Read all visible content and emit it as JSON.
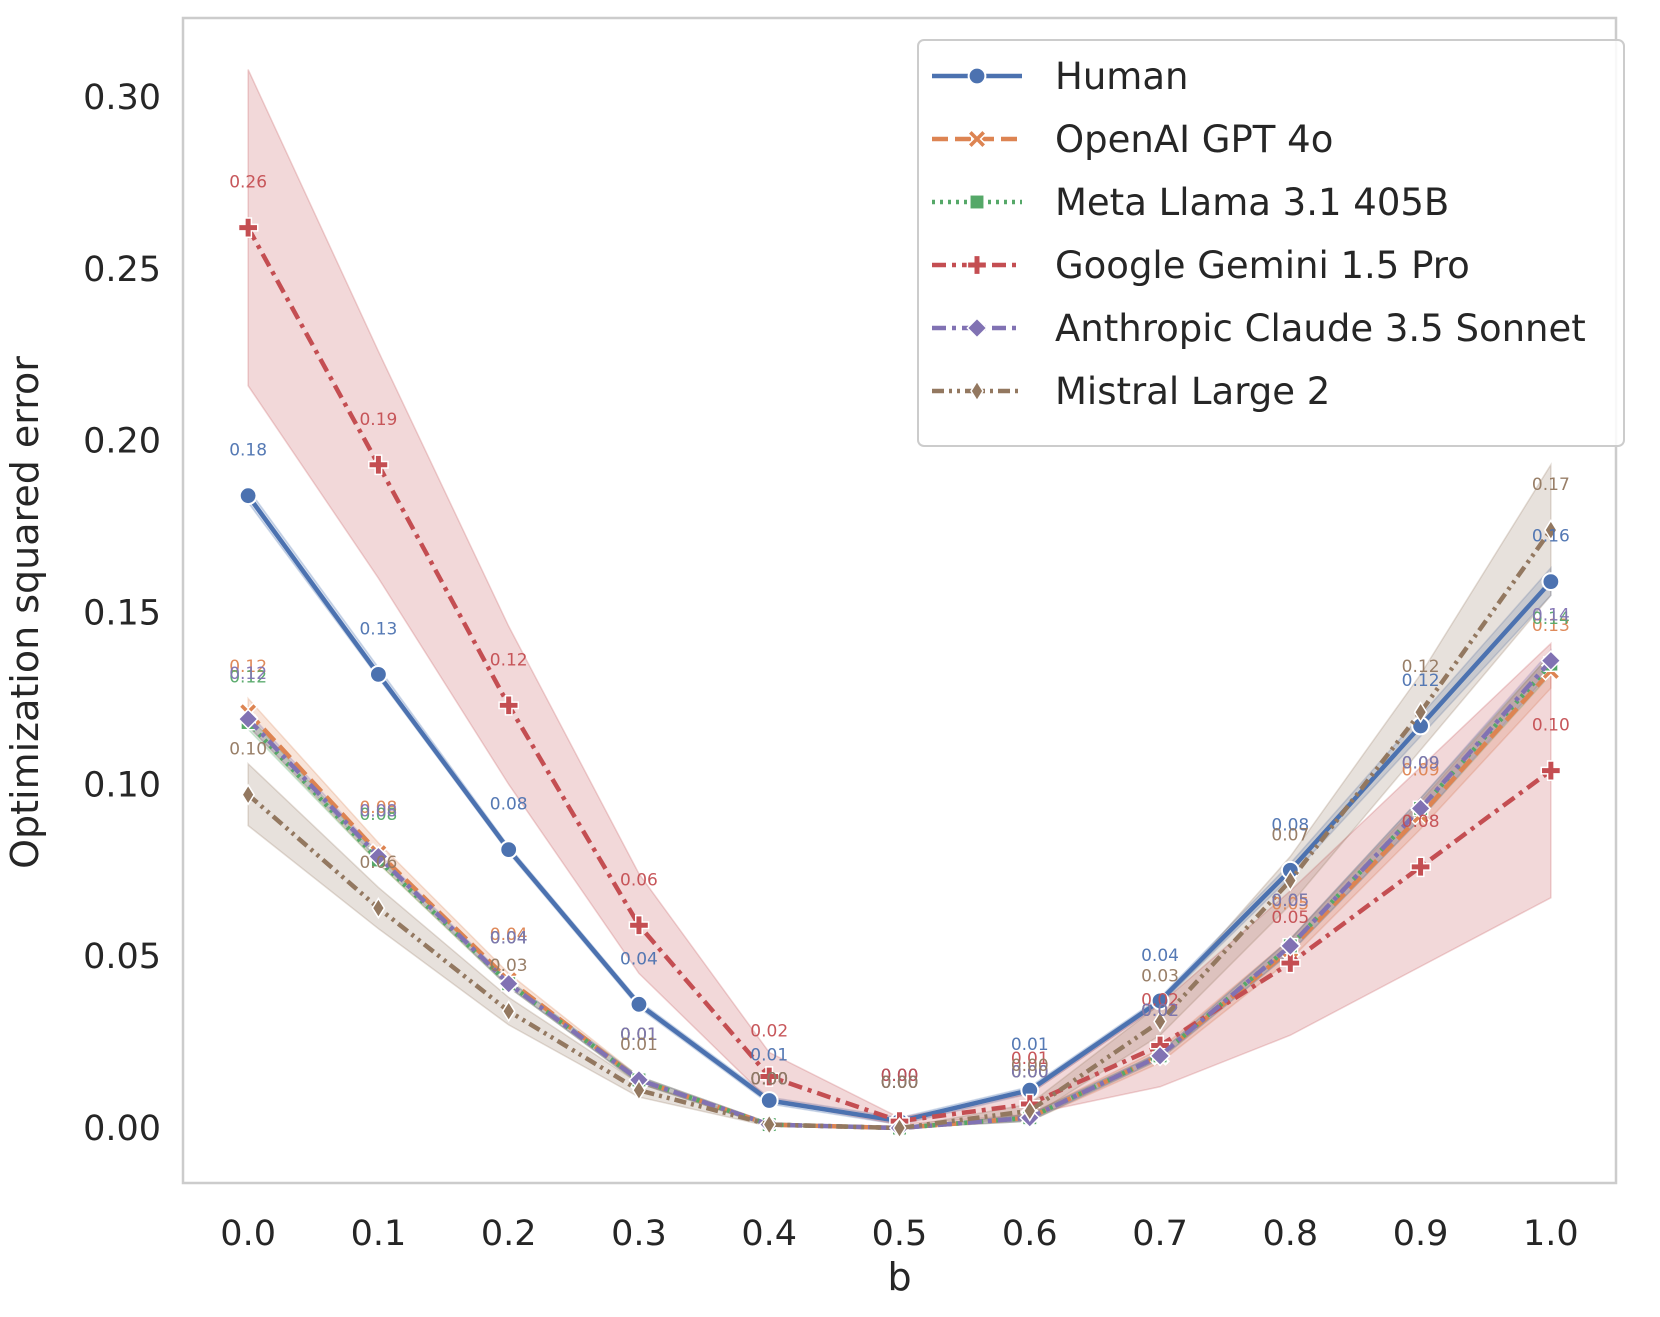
{
  "chart_data": {
    "type": "line",
    "title": "",
    "xlabel": "b",
    "ylabel": "Optimization squared error",
    "x": [
      0.0,
      0.1,
      0.2,
      0.3,
      0.4,
      0.5,
      0.6,
      0.7,
      0.8,
      0.9,
      1.0
    ],
    "x_tick_labels": [
      "0.0",
      "0.1",
      "0.2",
      "0.3",
      "0.4",
      "0.5",
      "0.6",
      "0.7",
      "0.8",
      "0.9",
      "1.0"
    ],
    "xlim": [
      -0.05,
      1.05
    ],
    "ylim": [
      -0.016,
      0.323
    ],
    "y_ticks": [
      0.0,
      0.05,
      0.1,
      0.15,
      0.2,
      0.25,
      0.3
    ],
    "y_tick_labels": [
      "0.00",
      "0.05",
      "0.10",
      "0.15",
      "0.20",
      "0.25",
      "0.30"
    ],
    "grid": false,
    "legend_position": "top-right",
    "series": [
      {
        "name": "Human",
        "color": "#4C72B0",
        "line_style": "solid",
        "marker": "circle",
        "values": [
          0.184,
          0.132,
          0.081,
          0.036,
          0.008,
          0.002,
          0.011,
          0.037,
          0.075,
          0.117,
          0.159
        ],
        "ci_lower": [
          0.182,
          0.131,
          0.08,
          0.035,
          0.007,
          0.001,
          0.01,
          0.036,
          0.073,
          0.114,
          0.155
        ],
        "ci_upper": [
          0.186,
          0.134,
          0.082,
          0.037,
          0.009,
          0.003,
          0.012,
          0.038,
          0.077,
          0.12,
          0.163
        ],
        "labels": [
          "0.18",
          "0.13",
          "0.08",
          "0.04",
          "0.01",
          "0.00",
          "0.01",
          "0.04",
          "0.08",
          "0.12",
          "0.16"
        ]
      },
      {
        "name": "OpenAI GPT 4o",
        "color": "#DD8452",
        "line_style": "dashed",
        "marker": "x",
        "values": [
          0.121,
          0.08,
          0.043,
          0.014,
          0.001,
          0.0,
          0.003,
          0.021,
          0.052,
          0.091,
          0.133
        ],
        "ci_lower": [
          0.117,
          0.077,
          0.041,
          0.013,
          0.0005,
          0.0,
          0.002,
          0.019,
          0.049,
          0.087,
          0.128
        ],
        "ci_upper": [
          0.125,
          0.083,
          0.045,
          0.015,
          0.0015,
          0.0,
          0.004,
          0.023,
          0.055,
          0.095,
          0.138
        ],
        "labels": [
          "0.12",
          "0.08",
          "0.04",
          "0.01",
          "0.00",
          "0.00",
          "0.00",
          "0.02",
          "0.05",
          "0.09",
          "0.13"
        ]
      },
      {
        "name": "Meta Llama 3.1 405B",
        "color": "#55A868",
        "line_style": "dotted",
        "marker": "square",
        "values": [
          0.118,
          0.078,
          0.042,
          0.014,
          0.001,
          0.0,
          0.003,
          0.021,
          0.053,
          0.093,
          0.135
        ],
        "ci_lower": [
          0.116,
          0.077,
          0.041,
          0.013,
          0.0005,
          0.0,
          0.002,
          0.02,
          0.051,
          0.09,
          0.132
        ],
        "ci_upper": [
          0.12,
          0.079,
          0.043,
          0.015,
          0.0015,
          0.0,
          0.004,
          0.022,
          0.055,
          0.096,
          0.138
        ],
        "labels": [
          "0.12",
          "0.08",
          "0.04",
          "0.01",
          "0.00",
          "0.00",
          "0.00",
          "0.02",
          "0.05",
          "0.09",
          "0.14"
        ]
      },
      {
        "name": "Google Gemini 1.5 Pro",
        "color": "#C44E52",
        "line_style": "dashdot",
        "marker": "plus",
        "values": [
          0.262,
          0.193,
          0.123,
          0.059,
          0.015,
          0.002,
          0.007,
          0.024,
          0.048,
          0.076,
          0.104
        ],
        "ci_lower": [
          0.216,
          0.16,
          0.1,
          0.045,
          0.008,
          0.001,
          0.004,
          0.012,
          0.027,
          0.047,
          0.067
        ],
        "ci_upper": [
          0.308,
          0.226,
          0.146,
          0.074,
          0.022,
          0.003,
          0.01,
          0.036,
          0.069,
          0.105,
          0.141
        ],
        "labels": [
          "0.26",
          "0.19",
          "0.12",
          "0.06",
          "0.02",
          "0.00",
          "0.01",
          "0.02",
          "0.05",
          "0.08",
          "0.10"
        ]
      },
      {
        "name": "Anthropic Claude 3.5 Sonnet",
        "color": "#8172B3",
        "line_style": "dashdot",
        "marker": "diamond",
        "values": [
          0.119,
          0.079,
          0.042,
          0.014,
          0.001,
          0.0,
          0.003,
          0.021,
          0.053,
          0.093,
          0.136
        ],
        "ci_lower": [
          0.117,
          0.078,
          0.041,
          0.013,
          0.0005,
          0.0,
          0.002,
          0.02,
          0.051,
          0.09,
          0.133
        ],
        "ci_upper": [
          0.121,
          0.08,
          0.043,
          0.015,
          0.0015,
          0.0,
          0.004,
          0.022,
          0.055,
          0.096,
          0.139
        ],
        "labels": [
          "0.12",
          "0.08",
          "0.04",
          "0.01",
          "0.00",
          "0.00",
          "0.00",
          "0.02",
          "0.05",
          "0.09",
          "0.14"
        ]
      },
      {
        "name": "Mistral Large 2",
        "color": "#937860",
        "line_style": "dashdotdot",
        "marker": "thin_diamond",
        "values": [
          0.097,
          0.064,
          0.034,
          0.011,
          0.001,
          0.0,
          0.005,
          0.031,
          0.072,
          0.121,
          0.174
        ],
        "ci_lower": [
          0.088,
          0.058,
          0.03,
          0.009,
          0.0005,
          0.0,
          0.003,
          0.027,
          0.065,
          0.11,
          0.155
        ],
        "ci_upper": [
          0.106,
          0.07,
          0.038,
          0.013,
          0.0015,
          0.0,
          0.007,
          0.036,
          0.079,
          0.132,
          0.193
        ],
        "labels": [
          "0.10",
          "0.06",
          "0.03",
          "0.01",
          "0.00",
          "0.00",
          "0.00",
          "0.03",
          "0.07",
          "0.12",
          "0.17"
        ]
      }
    ]
  }
}
